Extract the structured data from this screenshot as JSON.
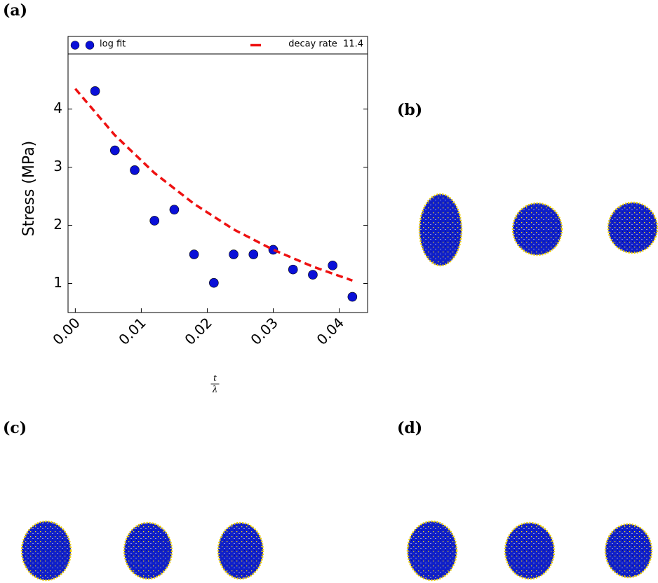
{
  "panel_labels": [
    "(a)",
    "(b)",
    "(c)",
    "(d)"
  ],
  "chart_data": {
    "type": "scatter",
    "y_label": "Stress (MPa)",
    "x_label": {
      "numerator": "t",
      "denominator": "λ"
    },
    "xlim": [
      -0.0011,
      0.0443
    ],
    "ylim": [
      0.5,
      5.25
    ],
    "xticks": [
      {
        "value": 0,
        "label": "0.00"
      },
      {
        "value": 0.01,
        "label": "0.01"
      },
      {
        "value": 0.02,
        "label": "0.02"
      },
      {
        "value": 0.03,
        "label": "0.03"
      },
      {
        "value": 0.04,
        "label": "0.04"
      }
    ],
    "yticks": [
      1,
      2,
      3,
      4
    ],
    "series": [
      {
        "name": "log fit",
        "type": "scatter",
        "color": "#0a10d8",
        "x": [
          0.003,
          0.006,
          0.009,
          0.012,
          0.015,
          0.018,
          0.021,
          0.024,
          0.027,
          0.03,
          0.033,
          0.036,
          0.039,
          0.042
        ],
        "values": [
          4.31,
          3.29,
          2.95,
          2.08,
          2.27,
          1.5,
          1.01,
          1.5,
          1.5,
          1.58,
          1.24,
          1.15,
          1.31,
          0.77
        ]
      },
      {
        "name": "decay rate  11.4",
        "type": "line",
        "color": "#ee1111",
        "x": [
          0,
          0.006,
          0.012,
          0.018,
          0.024,
          0.03,
          0.036,
          0.042
        ],
        "values": [
          4.35,
          3.55,
          2.9,
          2.37,
          1.93,
          1.58,
          1.29,
          1.05
        ]
      }
    ]
  }
}
